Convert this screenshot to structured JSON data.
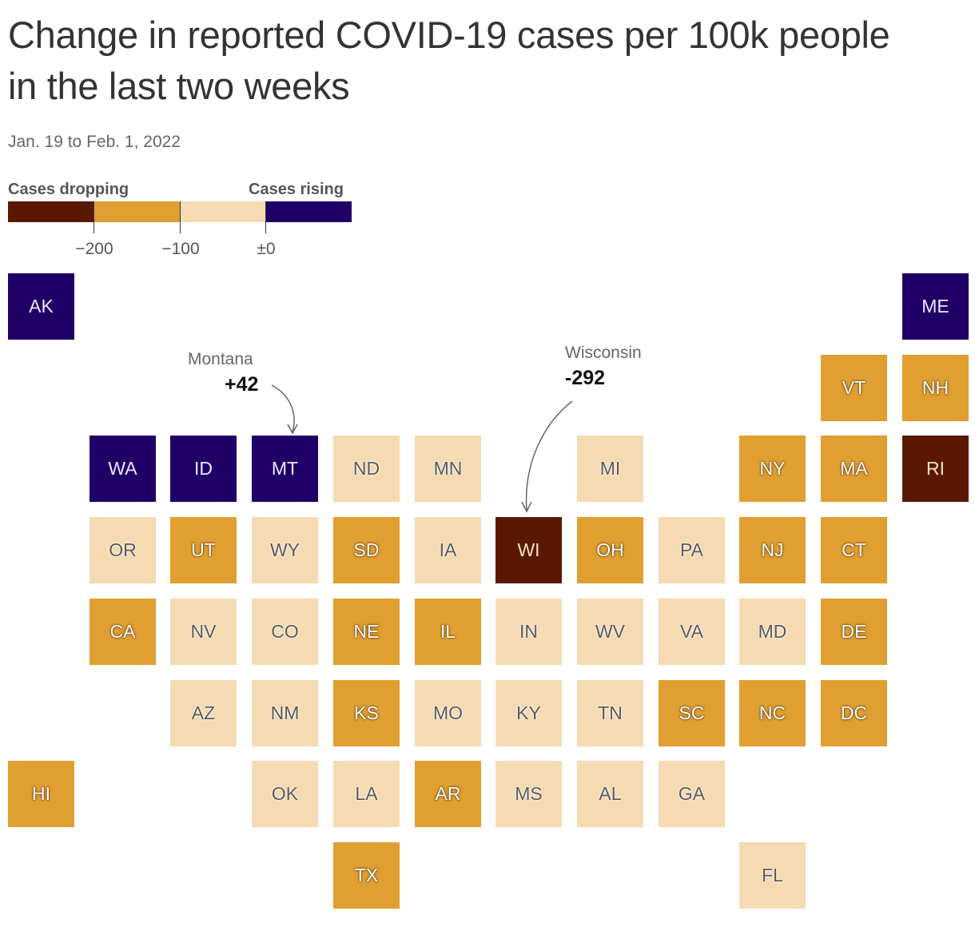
{
  "title": "Change in reported COVID-19 cases per 100k people in the last two weeks",
  "subtitle": "Jan. 19 to Feb. 1, 2022",
  "legend": {
    "left_label": "Cases dropping",
    "right_label": "Cases rising",
    "colors": [
      "#5a1800",
      "#e09f30",
      "#f5dab2",
      "#1f0066"
    ],
    "ticks": [
      "−200",
      "−100",
      "±0"
    ]
  },
  "annotations": {
    "montana": {
      "name": "Montana",
      "value": "+42"
    },
    "wisconsin": {
      "name": "Wisconsin",
      "value": "-292"
    }
  },
  "chart_data": {
    "type": "tile-grid-map",
    "bins": [
      {
        "key": "strong_drop",
        "range": "below −200",
        "color": "#5a1800"
      },
      {
        "key": "drop",
        "range": "−200 to −100",
        "color": "#e09f30"
      },
      {
        "key": "slight_drop",
        "range": "−100 to ±0",
        "color": "#f5dab2"
      },
      {
        "key": "rising",
        "range": "above ±0",
        "color": "#1f0066"
      }
    ],
    "states": [
      {
        "abbr": "AK",
        "bin": "rising"
      },
      {
        "abbr": "ME",
        "bin": "rising"
      },
      {
        "abbr": "VT",
        "bin": "drop"
      },
      {
        "abbr": "NH",
        "bin": "drop"
      },
      {
        "abbr": "WA",
        "bin": "rising"
      },
      {
        "abbr": "ID",
        "bin": "rising"
      },
      {
        "abbr": "MT",
        "bin": "rising"
      },
      {
        "abbr": "ND",
        "bin": "slight_drop"
      },
      {
        "abbr": "MN",
        "bin": "slight_drop"
      },
      {
        "abbr": "MI",
        "bin": "slight_drop"
      },
      {
        "abbr": "NY",
        "bin": "drop"
      },
      {
        "abbr": "MA",
        "bin": "drop"
      },
      {
        "abbr": "RI",
        "bin": "strong_drop"
      },
      {
        "abbr": "OR",
        "bin": "slight_drop"
      },
      {
        "abbr": "UT",
        "bin": "drop"
      },
      {
        "abbr": "WY",
        "bin": "slight_drop"
      },
      {
        "abbr": "SD",
        "bin": "drop"
      },
      {
        "abbr": "IA",
        "bin": "slight_drop"
      },
      {
        "abbr": "WI",
        "bin": "strong_drop"
      },
      {
        "abbr": "OH",
        "bin": "drop"
      },
      {
        "abbr": "PA",
        "bin": "slight_drop"
      },
      {
        "abbr": "NJ",
        "bin": "drop"
      },
      {
        "abbr": "CT",
        "bin": "drop"
      },
      {
        "abbr": "CA",
        "bin": "drop"
      },
      {
        "abbr": "NV",
        "bin": "slight_drop"
      },
      {
        "abbr": "CO",
        "bin": "slight_drop"
      },
      {
        "abbr": "NE",
        "bin": "drop"
      },
      {
        "abbr": "IL",
        "bin": "drop"
      },
      {
        "abbr": "IN",
        "bin": "slight_drop"
      },
      {
        "abbr": "WV",
        "bin": "slight_drop"
      },
      {
        "abbr": "VA",
        "bin": "slight_drop"
      },
      {
        "abbr": "MD",
        "bin": "slight_drop"
      },
      {
        "abbr": "DE",
        "bin": "drop"
      },
      {
        "abbr": "AZ",
        "bin": "slight_drop"
      },
      {
        "abbr": "NM",
        "bin": "slight_drop"
      },
      {
        "abbr": "KS",
        "bin": "drop"
      },
      {
        "abbr": "MO",
        "bin": "slight_drop"
      },
      {
        "abbr": "KY",
        "bin": "slight_drop"
      },
      {
        "abbr": "TN",
        "bin": "slight_drop"
      },
      {
        "abbr": "SC",
        "bin": "drop"
      },
      {
        "abbr": "NC",
        "bin": "drop"
      },
      {
        "abbr": "DC",
        "bin": "drop"
      },
      {
        "abbr": "HI",
        "bin": "drop"
      },
      {
        "abbr": "OK",
        "bin": "slight_drop"
      },
      {
        "abbr": "LA",
        "bin": "slight_drop"
      },
      {
        "abbr": "AR",
        "bin": "drop"
      },
      {
        "abbr": "MS",
        "bin": "slight_drop"
      },
      {
        "abbr": "AL",
        "bin": "slight_drop"
      },
      {
        "abbr": "GA",
        "bin": "slight_drop"
      },
      {
        "abbr": "TX",
        "bin": "drop"
      },
      {
        "abbr": "FL",
        "bin": "slight_drop"
      }
    ]
  }
}
